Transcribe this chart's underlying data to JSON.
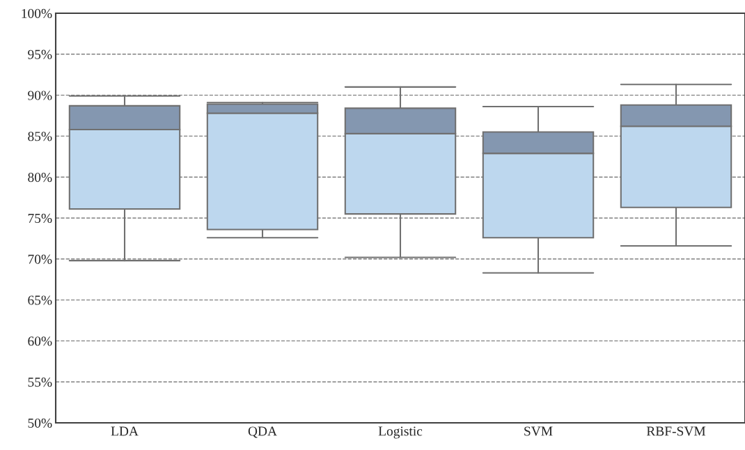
{
  "chart_data": {
    "type": "box",
    "categories": [
      "LDA",
      "QDA",
      "Logistic",
      "SVM",
      "RBF-SVM"
    ],
    "series": [
      {
        "colors": [
          [
            "#bdd7ee",
            "#8497b0"
          ],
          [
            "#bdd7ee",
            "#8497b0"
          ],
          [
            "#bdd7ee",
            "#8497b0"
          ],
          [
            "#bdd7ee",
            "#8497b0"
          ],
          [
            "#bdd7ee",
            "#8497b0"
          ]
        ],
        "boxes": [
          {
            "low": 69.8,
            "q1": 76.1,
            "median": 85.8,
            "q3": 88.7,
            "high": 89.9
          },
          {
            "low": 72.6,
            "q1": 73.6,
            "median": 87.8,
            "q3": 88.9,
            "high": 89.1
          },
          {
            "low": 70.2,
            "q1": 75.5,
            "median": 85.3,
            "q3": 88.4,
            "high": 91.0
          },
          {
            "low": 68.3,
            "q1": 72.6,
            "median": 82.9,
            "q3": 85.5,
            "high": 88.6
          },
          {
            "low": 71.6,
            "q1": 76.3,
            "median": 86.2,
            "q3": 88.8,
            "high": 91.3
          }
        ]
      }
    ],
    "ylim": [
      50,
      100
    ],
    "yticks": [
      {
        "value": 50,
        "label": "50%"
      },
      {
        "value": 55,
        "label": "55%"
      },
      {
        "value": 60,
        "label": "60%"
      },
      {
        "value": 65,
        "label": "65%"
      },
      {
        "value": 70,
        "label": "70%"
      },
      {
        "value": 75,
        "label": "75%"
      },
      {
        "value": 80,
        "label": "80%"
      },
      {
        "value": 85,
        "label": "85%"
      },
      {
        "value": 90,
        "label": "90%"
      },
      {
        "value": 95,
        "label": "95%"
      },
      {
        "value": 100,
        "label": "100%"
      }
    ],
    "grid": "y",
    "line_style": "dashed"
  }
}
